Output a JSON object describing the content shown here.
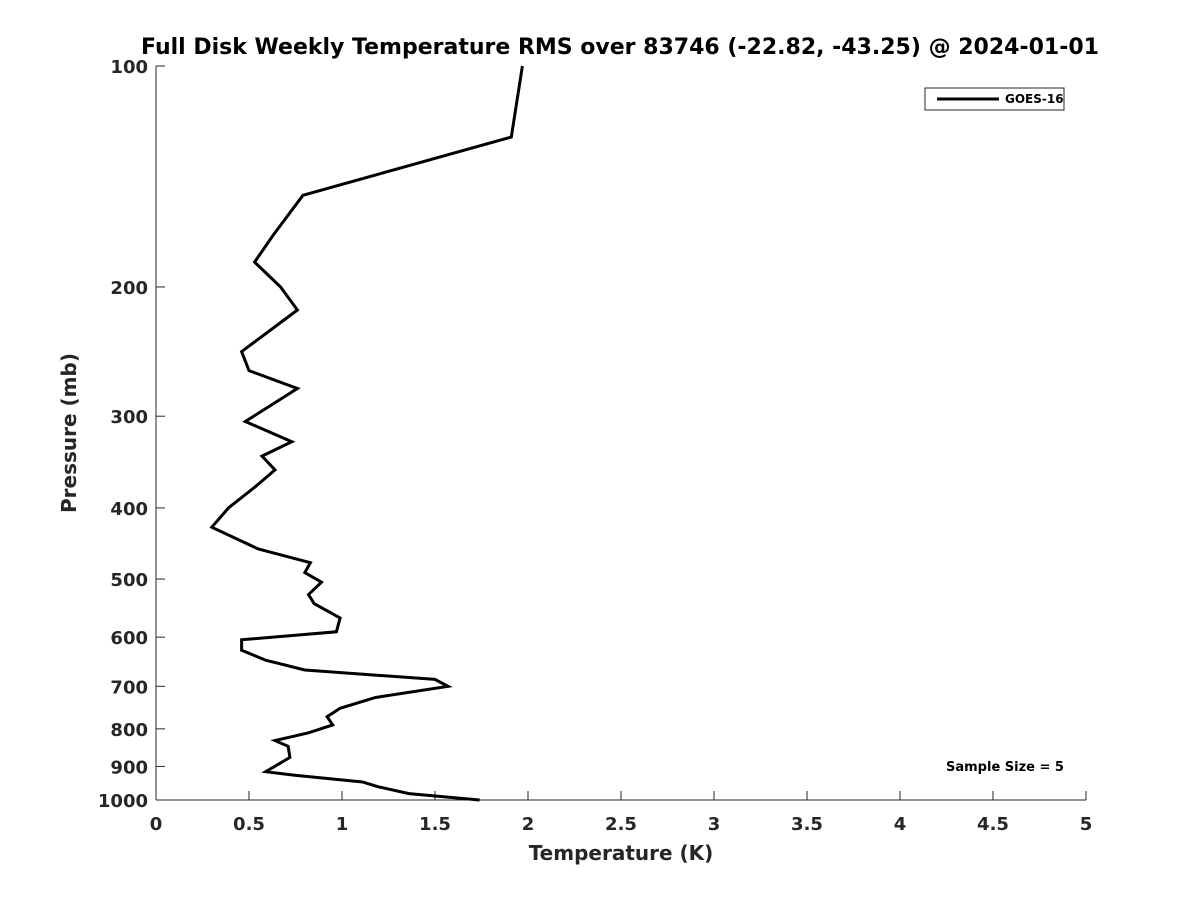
{
  "chart_data": {
    "type": "line",
    "title": "Full Disk Weekly Temperature RMS over 83746 (-22.82, -43.25) @ 2024-01-01",
    "xlabel": "Temperature (K)",
    "ylabel": "Pressure (mb)",
    "xlim": [
      0,
      5
    ],
    "ylim": [
      100,
      1000
    ],
    "y_scale": "log",
    "y_reversed": true,
    "x_ticks": [
      "0",
      "0.5",
      "1",
      "1.5",
      "2",
      "2.5",
      "3",
      "3.5",
      "4",
      "4.5",
      "5"
    ],
    "y_ticks": [
      "100",
      "200",
      "300",
      "400",
      "500",
      "600",
      "700",
      "800",
      "900",
      "1000"
    ],
    "grid": false,
    "legend_position": "top-right",
    "annotation": "Sample Size = 5",
    "series": [
      {
        "name": "GOES-16",
        "color": "#000000",
        "x": [
          1.97,
          1.91,
          0.79,
          0.63,
          0.53,
          0.67,
          0.76,
          0.46,
          0.5,
          0.76,
          0.48,
          0.73,
          0.57,
          0.64,
          0.53,
          0.39,
          0.3,
          0.55,
          0.83,
          0.8,
          0.89,
          0.82,
          0.85,
          0.99,
          0.97,
          0.46,
          0.46,
          0.59,
          0.8,
          1.5,
          1.57,
          1.18,
          0.99,
          0.92,
          0.95,
          0.82,
          0.64,
          0.71,
          0.72,
          0.59,
          0.74,
          1.11,
          1.2,
          1.36,
          1.74
        ],
        "y": [
          100,
          125,
          150,
          170,
          185,
          200,
          215,
          245,
          260,
          275,
          305,
          325,
          340,
          355,
          375,
          400,
          425,
          455,
          475,
          490,
          505,
          525,
          540,
          565,
          590,
          605,
          625,
          645,
          665,
          685,
          700,
          725,
          750,
          770,
          790,
          810,
          830,
          845,
          875,
          915,
          925,
          945,
          960,
          980,
          1000
        ]
      }
    ]
  }
}
